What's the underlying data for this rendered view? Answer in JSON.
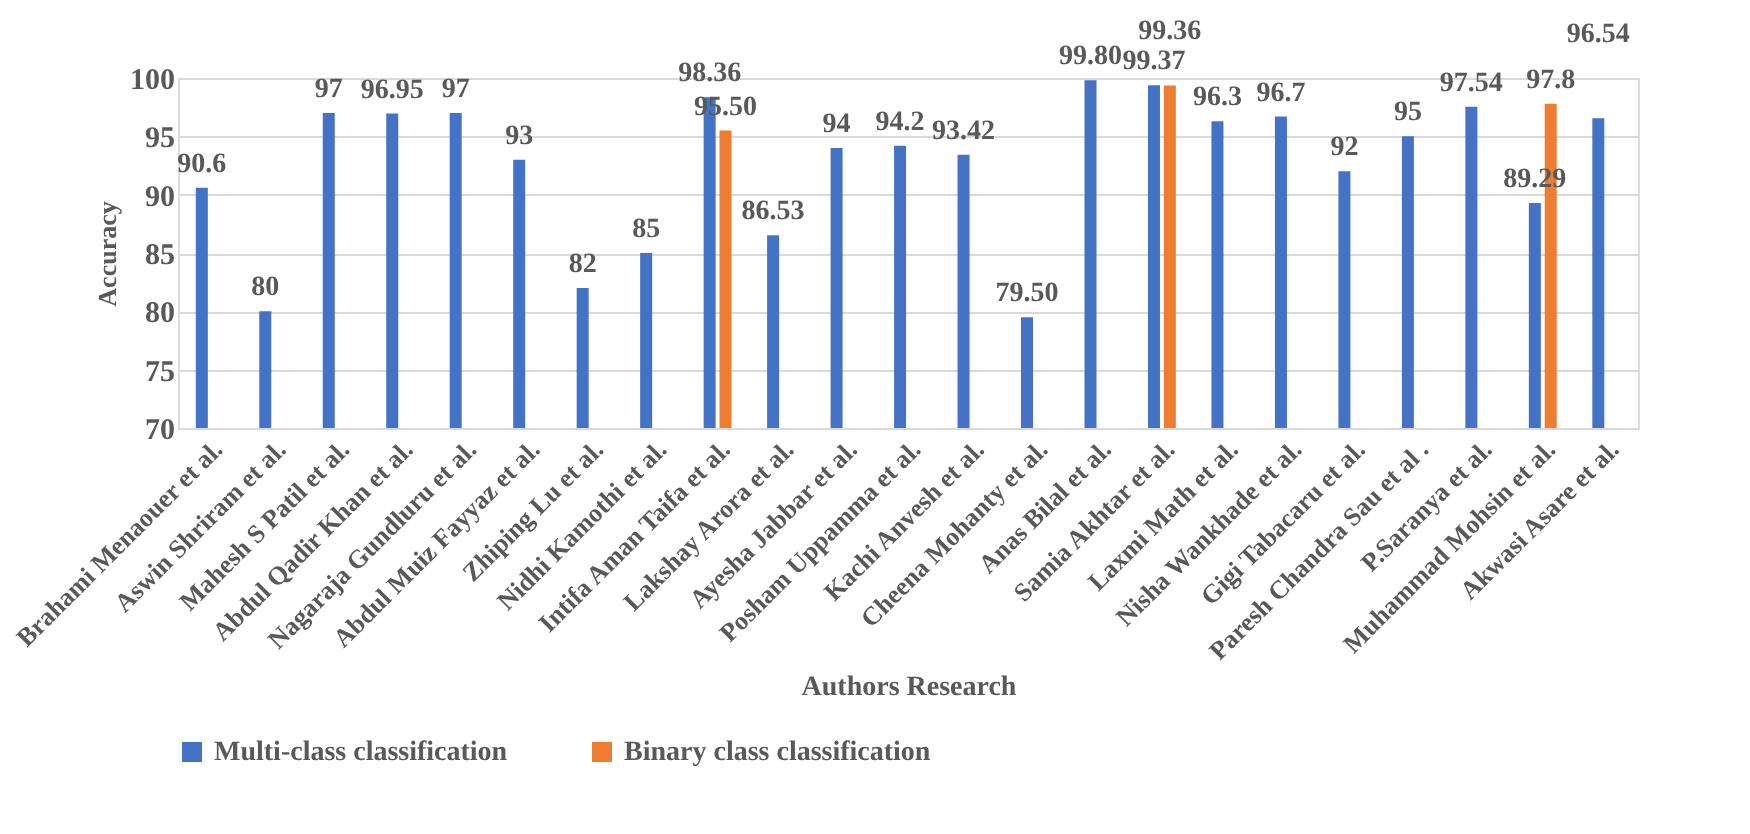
{
  "chart_data": {
    "type": "bar",
    "xlabel": "Authors Research",
    "ylabel": "Accuracy",
    "categories": [
      "Brahami Menaouer et al.",
      "Aswin Shriram et al.",
      "Mahesh S Patil et al.",
      "Abdul Qadir Khan et  al.",
      "Nagaraja Gundluru et al.",
      "Abdul Muiz Fayyaz et al.",
      "Zhiping Lu et al.",
      "Nidhi Kamothi et al.",
      "Intifa Aman Taifa et al.",
      "Lakshay Arora et al.",
      "Ayesha Jabbar et al.",
      "Posham Uppamma et al.",
      "Kachi Anvesh et al.",
      "Cheena Mohanty et al.",
      "Anas Bilal et al.",
      "Samia Akhtar et al.",
      "Laxmi Math et al.",
      "Nisha Wankhade et al.",
      "Gigi Tabacaru et al.",
      "Paresh Chandra Sau et al .",
      "P.Saranya et al.",
      "Muhammad Mohsin et al.",
      "Akwasi Asare et al."
    ],
    "series": [
      {
        "name": "Multi-class classification",
        "color": "#4472c4",
        "values": [
          90.6,
          80,
          97,
          96.95,
          97,
          93,
          82,
          85,
          98.36,
          86.53,
          94,
          94.2,
          93.42,
          79.5,
          99.8,
          99.37,
          96.3,
          96.7,
          92,
          95,
          97.54,
          89.29,
          96.54
        ],
        "value_labels": [
          "90.6",
          "80",
          "97",
          "96.95",
          "97",
          "93",
          "82",
          "85",
          "98.36",
          "86.53",
          "94",
          "94.2",
          "93.42",
          "79.50",
          "99.80",
          "99.37",
          "96.3",
          "96.7",
          "92",
          "95",
          "97.54",
          "89.29",
          "96.54"
        ]
      },
      {
        "name": "Binary class classification",
        "color": "#ed7d31",
        "values": [
          null,
          null,
          null,
          null,
          null,
          null,
          null,
          null,
          95.5,
          null,
          null,
          null,
          null,
          null,
          null,
          99.36,
          null,
          null,
          null,
          null,
          null,
          97.8,
          null
        ],
        "value_labels": [
          null,
          null,
          null,
          null,
          null,
          null,
          null,
          null,
          "95.50",
          null,
          null,
          null,
          null,
          null,
          null,
          "99.36",
          null,
          null,
          null,
          null,
          null,
          "97.8",
          null
        ]
      }
    ],
    "ylim": [
      70,
      100
    ],
    "yticks": [
      70,
      75,
      80,
      85,
      90,
      95,
      100
    ],
    "grid": "y",
    "legend": "bottom"
  }
}
